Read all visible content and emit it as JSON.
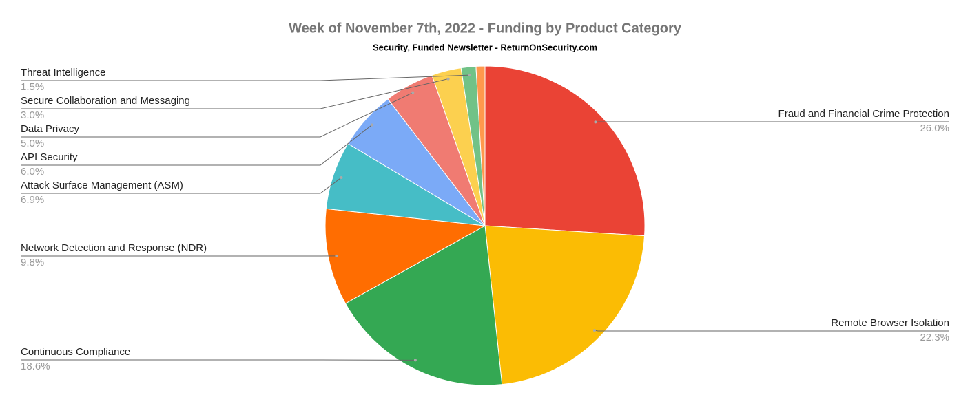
{
  "chart_data": {
    "type": "pie",
    "title": "Week of November 7th, 2022 - Funding by Product Category",
    "subtitle": "Security, Funded Newsletter - ReturnOnSecurity.com",
    "categories": [
      "Fraud and Financial Crime Protection",
      "Remote Browser Isolation",
      "Continuous Compliance",
      "Network Detection and Response (NDR)",
      "Attack Surface Management (ASM)",
      "API Security",
      "Data Privacy",
      "Secure Collaboration and Messaging",
      "Threat Intelligence",
      null
    ],
    "values": [
      26.0,
      22.3,
      18.6,
      9.8,
      6.9,
      6.0,
      5.0,
      3.0,
      1.5,
      0.9
    ],
    "value_labels": [
      "26.0%",
      "22.3%",
      "18.6%",
      "9.8%",
      "6.9%",
      "6.0%",
      "5.0%",
      "3.0%",
      "1.5%",
      null
    ],
    "colors": [
      "#ea4335",
      "#fbbc04",
      "#34a853",
      "#ff6d01",
      "#46bdc6",
      "#7baaf7",
      "#f07b72",
      "#fcd04f",
      "#71c287",
      "#ff994d"
    ]
  }
}
